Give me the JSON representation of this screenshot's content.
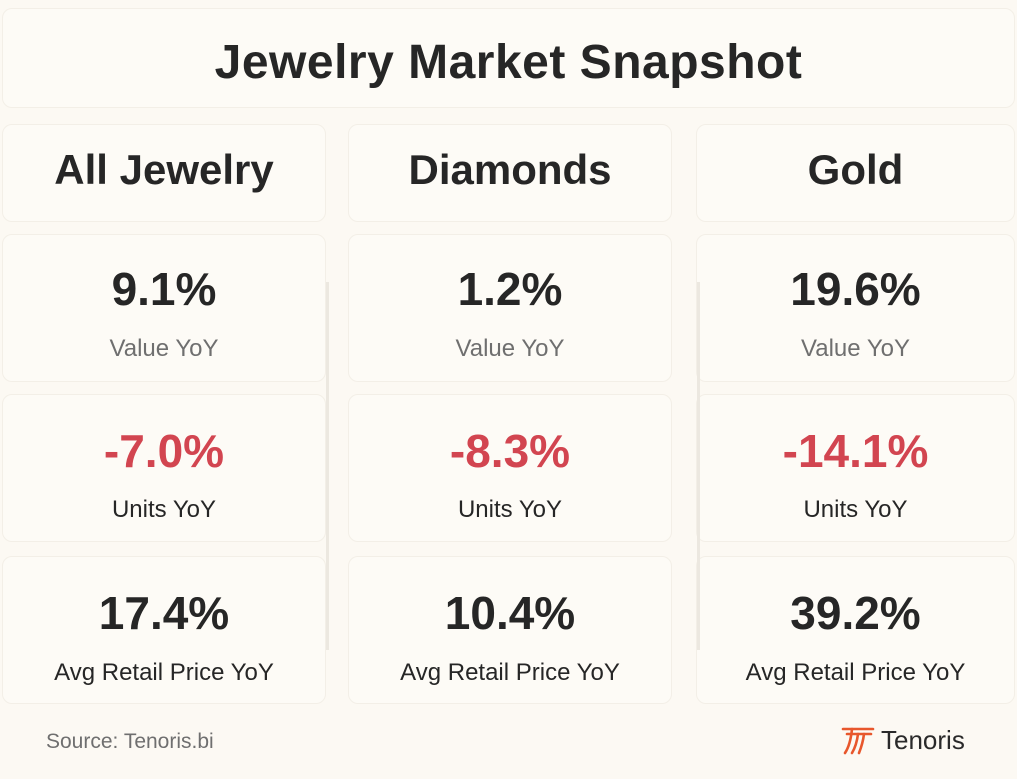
{
  "title": "Jewelry Market Snapshot",
  "columns": [
    {
      "header": "All Jewelry",
      "value_yoy": "9.1%",
      "value_label": "Value YoY",
      "units_yoy": "-7.0%",
      "units_label": "Units YoY",
      "price_yoy": "17.4%",
      "price_label": "Avg Retail Price YoY"
    },
    {
      "header": "Diamonds",
      "value_yoy": "1.2%",
      "value_label": "Value YoY",
      "units_yoy": "-8.3%",
      "units_label": "Units YoY",
      "price_yoy": "10.4%",
      "price_label": "Avg Retail Price YoY"
    },
    {
      "header": "Gold",
      "value_yoy": "19.6%",
      "value_label": "Value YoY",
      "units_yoy": "-14.1%",
      "units_label": "Units YoY",
      "price_yoy": "39.2%",
      "price_label": "Avg Retail Price YoY"
    }
  ],
  "source": "Source: Tenoris.bi",
  "brand": {
    "name": "Tenoris",
    "icon": "tenoris-logo-icon",
    "color": "#e8572c"
  },
  "colors": {
    "negative": "#d24550",
    "text": "#262626",
    "muted": "#6f6f6f"
  }
}
